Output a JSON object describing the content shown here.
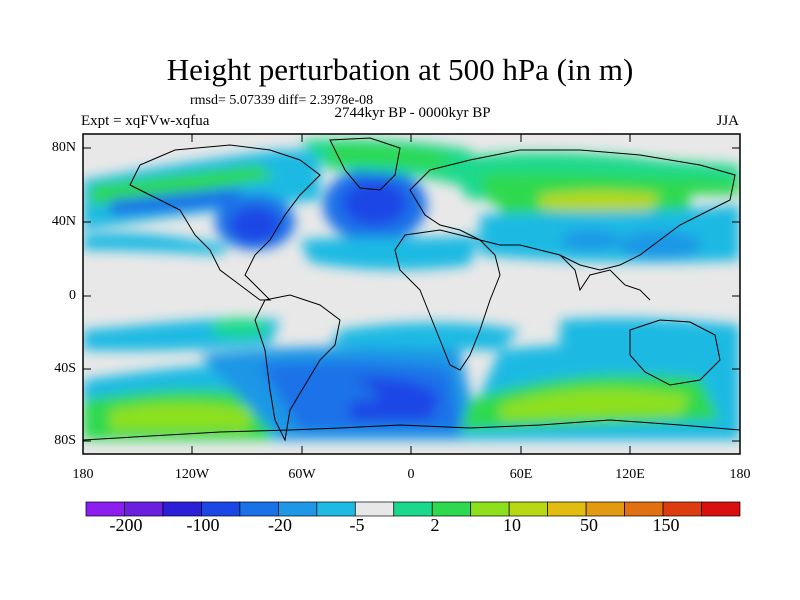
{
  "header": {
    "title": "Height perturbation at 500 hPa (in m)",
    "stats": "rmsd= 5.07339 diff= 2.3978e-08",
    "period": "2744kyr BP - 0000kyr BP",
    "experiment": "Expt = xqFVw-xqfua",
    "season": "JJA"
  },
  "axes": {
    "lat_labels": [
      "80N",
      "40N",
      "0",
      "40S",
      "80S"
    ],
    "lon_labels": [
      "180",
      "120W",
      "60W",
      "0",
      "60E",
      "120E",
      "180"
    ]
  },
  "colorbar": {
    "colors": [
      "#8c1ef0",
      "#6d1fe0",
      "#2b1fd8",
      "#1c47e6",
      "#1a72e8",
      "#1e97e6",
      "#1fbae3",
      "#e8e8e8",
      "#1ad98d",
      "#2ed94f",
      "#8ee01c",
      "#b8d814",
      "#e0bd10",
      "#e39a10",
      "#e07010",
      "#dc3c10",
      "#d91010"
    ],
    "labels": [
      "-200",
      "-100",
      "-20",
      "-5",
      "2",
      "10",
      "50",
      "150"
    ]
  },
  "palette": {
    "background": "#e8e8e8",
    "coast": "#000000"
  }
}
